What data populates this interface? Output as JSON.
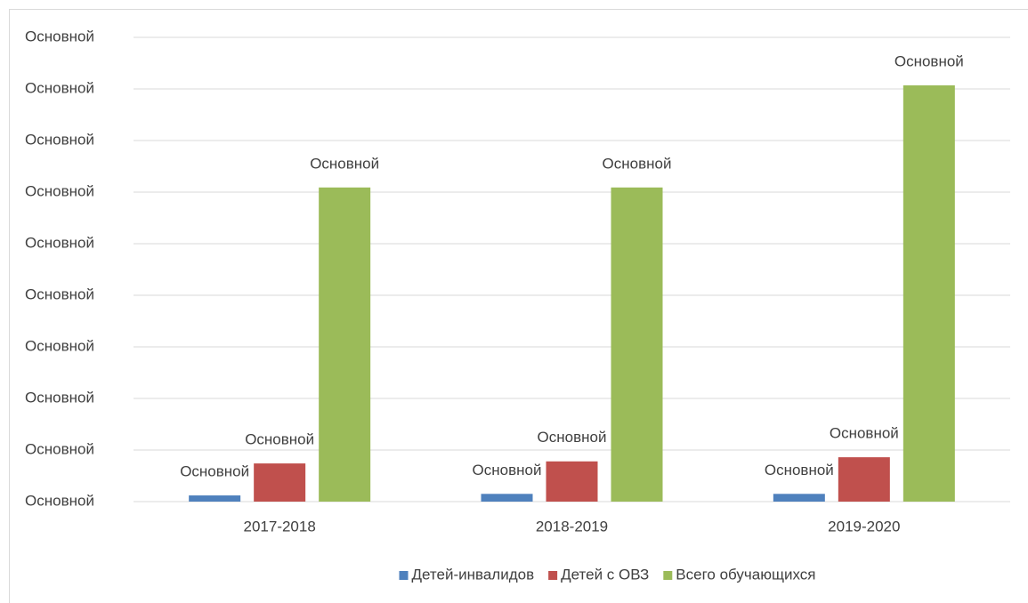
{
  "chart_data": {
    "type": "bar",
    "categories": [
      "2017-2018",
      "2018-2019",
      "2019-2020"
    ],
    "series": [
      {
        "name": "Детей-инвалидов",
        "color": "#4f81bd",
        "values": [
          1.2,
          1.5,
          1.5
        ],
        "value_labels": [
          "Основной",
          "Основной",
          "Основной"
        ]
      },
      {
        "name": "Детей с ОВЗ",
        "color": "#c0504d",
        "values": [
          7.4,
          7.8,
          8.6
        ],
        "value_labels": [
          "Основной",
          "Основной",
          "Основной"
        ]
      },
      {
        "name": "Всего обучающихся",
        "color": "#9bbb59",
        "values": [
          60.9,
          60.9,
          80.7
        ],
        "value_labels": [
          "Основной",
          "Основной",
          "Основной"
        ]
      }
    ],
    "ylim": [
      0,
      90
    ],
    "yticks": [
      {
        "value": 0,
        "label": "Основной"
      },
      {
        "value": 10,
        "label": "Основной"
      },
      {
        "value": 20,
        "label": "Основной"
      },
      {
        "value": 30,
        "label": "Основной"
      },
      {
        "value": 40,
        "label": "Основной"
      },
      {
        "value": 50,
        "label": "Основной"
      },
      {
        "value": 60,
        "label": "Основной"
      },
      {
        "value": 70,
        "label": "Основной"
      },
      {
        "value": 80,
        "label": "Основной"
      },
      {
        "value": 90,
        "label": "Основной"
      }
    ],
    "grid": true,
    "legend": "bottom"
  }
}
